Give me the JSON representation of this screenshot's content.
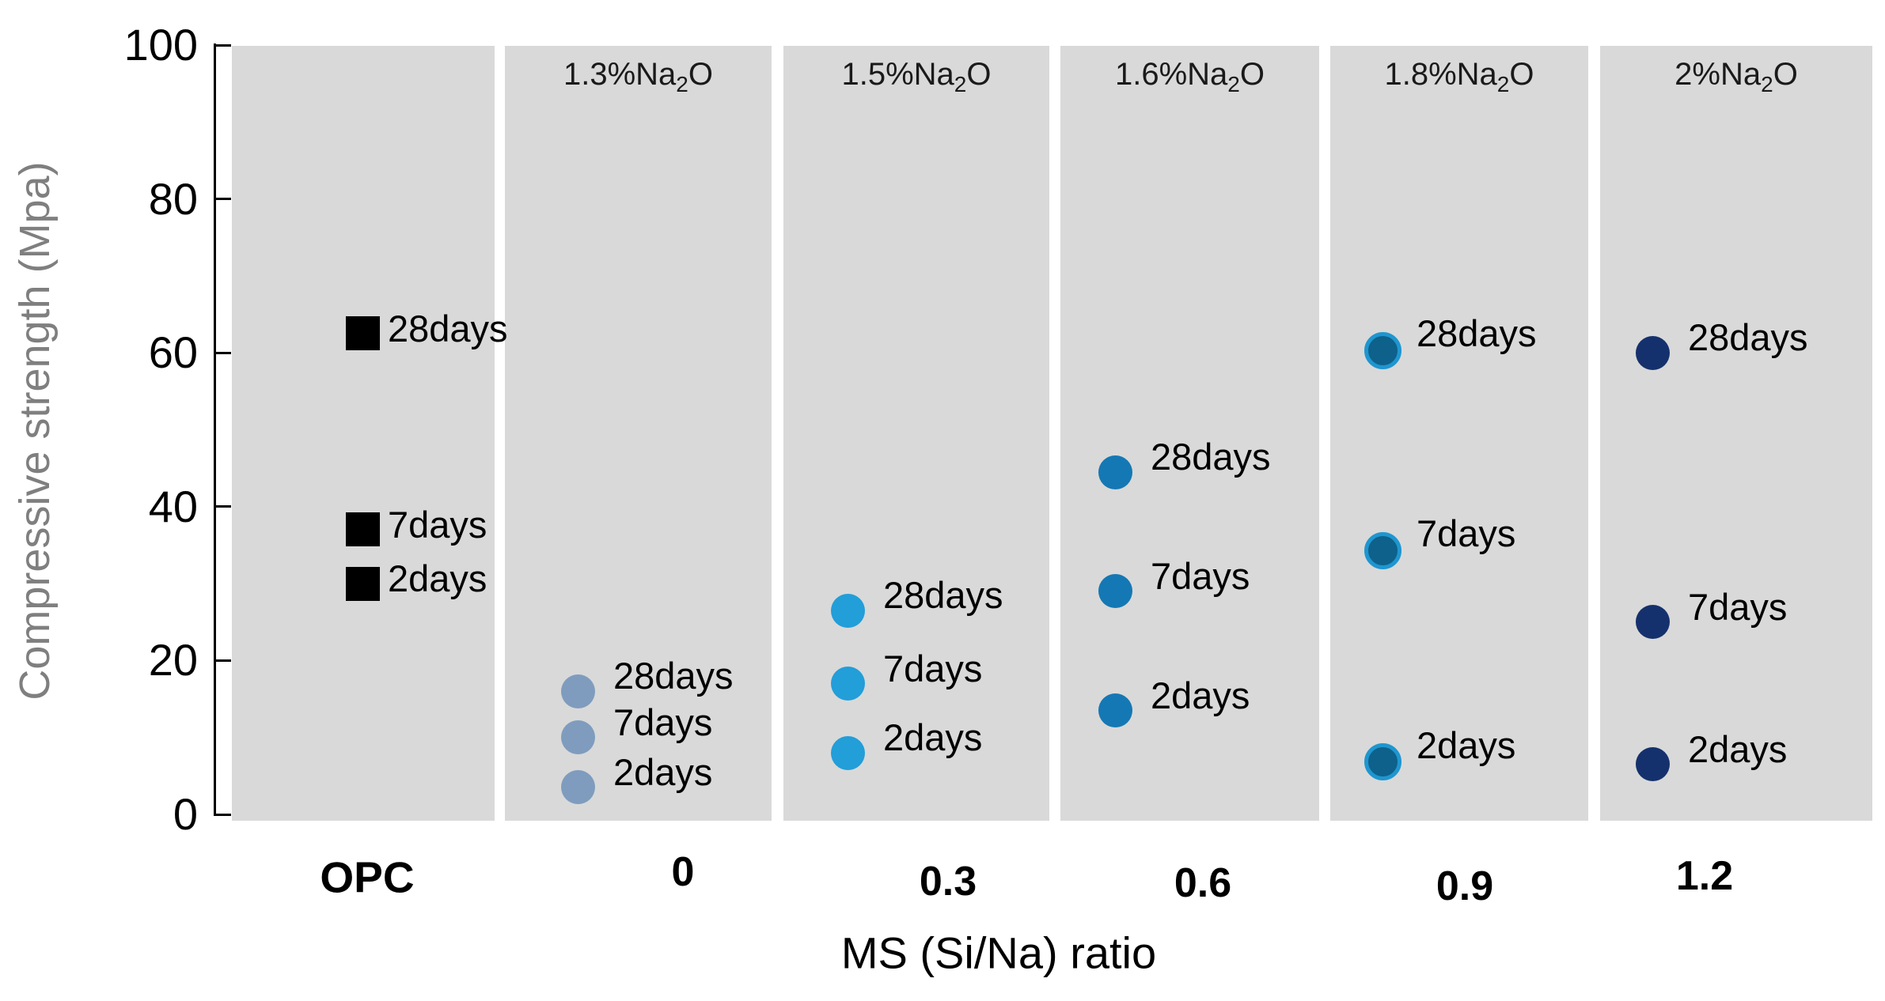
{
  "chart_data": {
    "type": "scatter",
    "title": "",
    "xlabel": "MS (Si/Na) ratio",
    "ylabel": "Compressive strength (Mpa)",
    "ylabel_color": "#7f7f7f",
    "ylim": [
      0,
      100
    ],
    "yticks": [
      0,
      20,
      40,
      60,
      80,
      100
    ],
    "grid": false,
    "legend_position": "none",
    "panel_background": "#d9d9d9",
    "axis_color": "#000000",
    "panels": [
      {
        "x_label": "OPC",
        "header": null,
        "marker": {
          "shape": "square",
          "color": "#000000"
        },
        "points": [
          {
            "day": "28days",
            "value": 62.5
          },
          {
            "day": "7days",
            "value": 37
          },
          {
            "day": "2days",
            "value": 30
          }
        ]
      },
      {
        "x_label": "0",
        "header": {
          "pre": "1.3%Na",
          "sub": "2",
          "post": "O"
        },
        "marker": {
          "shape": "circle",
          "color": "#7f9cbe"
        },
        "points": [
          {
            "day": "28days",
            "value": 16
          },
          {
            "day": "7days",
            "value": 10
          },
          {
            "day": "2days",
            "value": 3.5
          }
        ]
      },
      {
        "x_label": "0.3",
        "header": {
          "pre": "1.5%Na",
          "sub": "2",
          "post": "O"
        },
        "marker": {
          "shape": "circle",
          "color": "#229ed9"
        },
        "points": [
          {
            "day": "28days",
            "value": 26.5
          },
          {
            "day": "7days",
            "value": 17
          },
          {
            "day": "2days",
            "value": 8
          }
        ]
      },
      {
        "x_label": "0.6",
        "header": {
          "pre": "1.6%Na",
          "sub": "2",
          "post": "O"
        },
        "marker": {
          "shape": "circle",
          "color": "#1478b4"
        },
        "points": [
          {
            "day": "28days",
            "value": 44.5
          },
          {
            "day": "7days",
            "value": 29
          },
          {
            "day": "2days",
            "value": 13.5
          }
        ]
      },
      {
        "x_label": "0.9",
        "header": {
          "pre": "1.8%Na",
          "sub": "2",
          "post": "O"
        },
        "marker": {
          "shape": "circle",
          "color": "#0e618a",
          "ring": "#1e96d0"
        },
        "points": [
          {
            "day": "28days",
            "value": 60.5
          },
          {
            "day": "7days",
            "value": 34.5
          },
          {
            "day": "2days",
            "value": 7
          }
        ]
      },
      {
        "x_label": "1.2",
        "header": {
          "pre": "2%Na",
          "sub": "2",
          "post": "O"
        },
        "marker": {
          "shape": "circle",
          "color": "#15316d"
        },
        "points": [
          {
            "day": "28days",
            "value": 60
          },
          {
            "day": "7days",
            "value": 25
          },
          {
            "day": "2days",
            "value": 6.5
          }
        ]
      }
    ]
  }
}
